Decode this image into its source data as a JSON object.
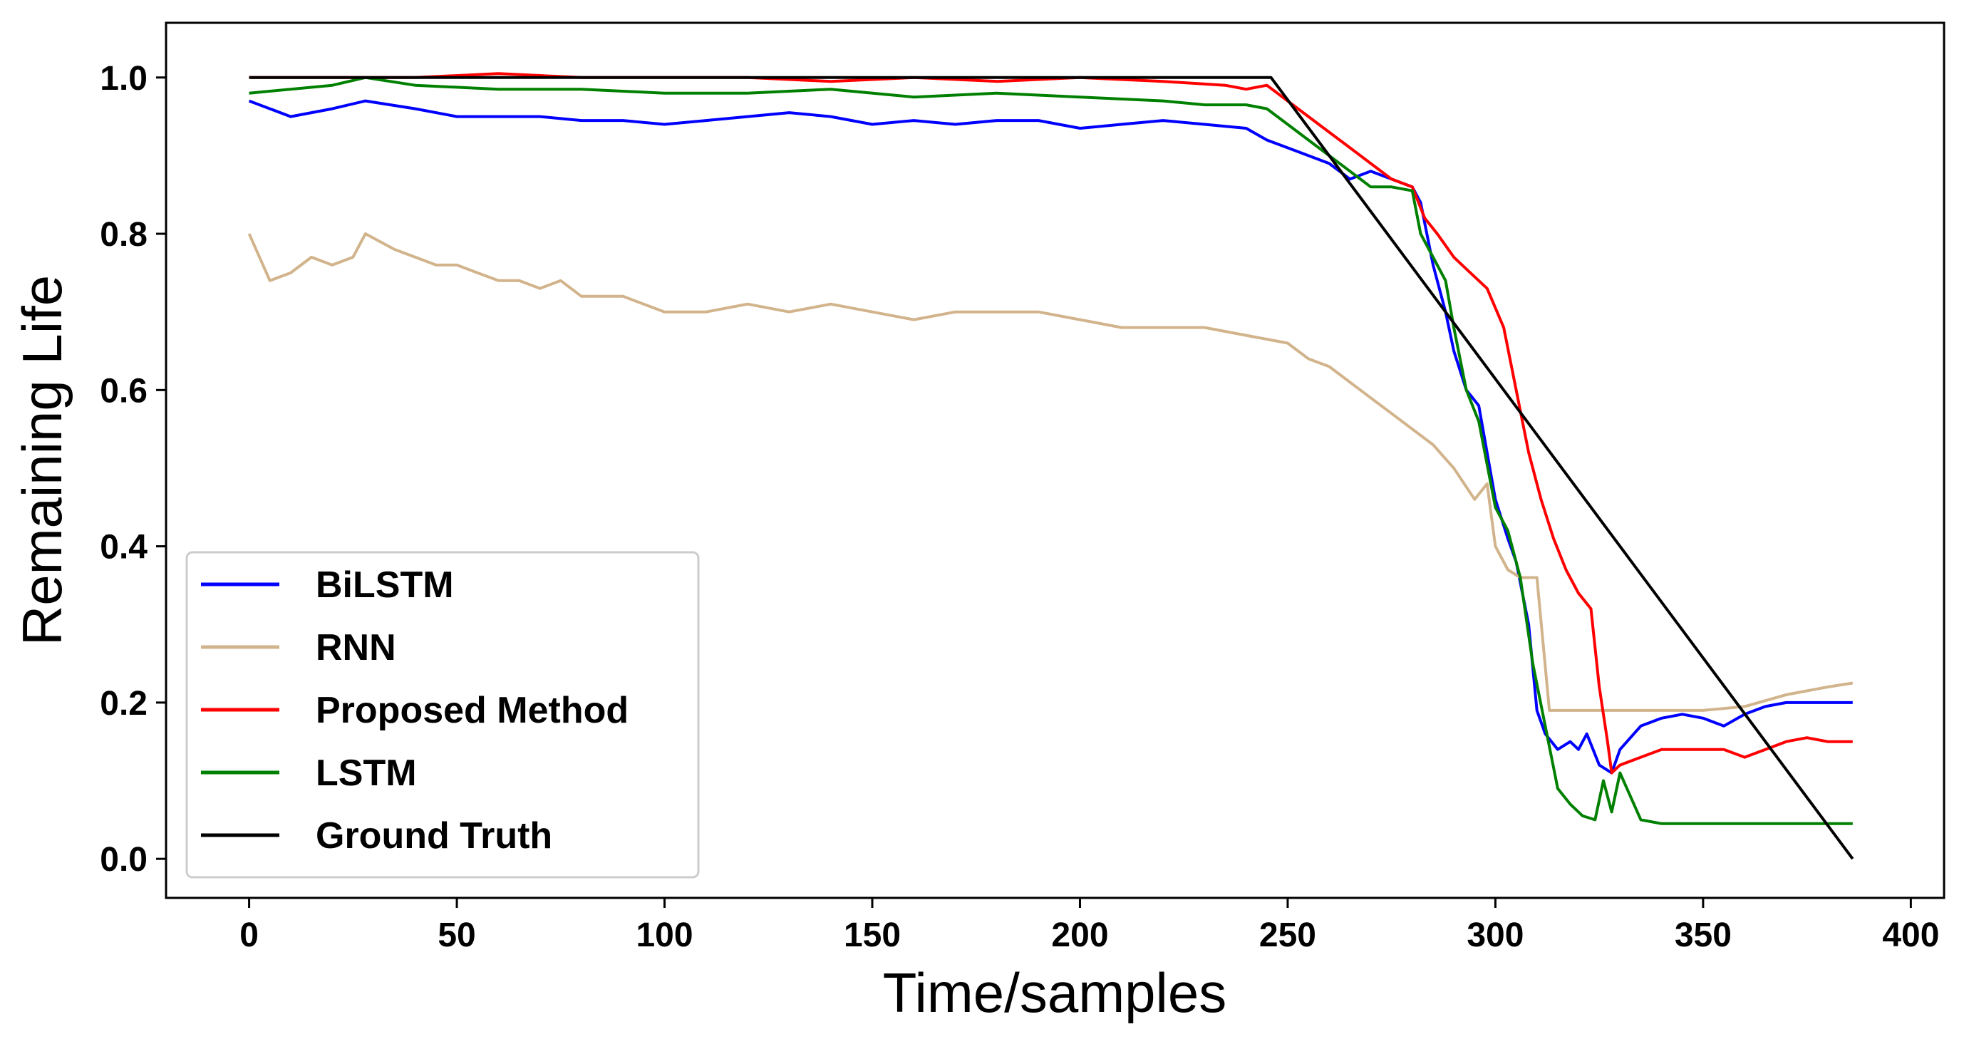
{
  "chart_data": {
    "type": "line",
    "title": "",
    "xlabel": "Time/samples",
    "ylabel": "Remaining Life",
    "xlim": [
      -20,
      408
    ],
    "ylim": [
      -0.05,
      1.07
    ],
    "xticks": [
      0,
      50,
      100,
      150,
      200,
      250,
      300,
      350,
      400
    ],
    "xtick_labels": [
      "0",
      "50",
      "100",
      "150",
      "200",
      "250",
      "300",
      "350",
      "400"
    ],
    "yticks": [
      0.0,
      0.2,
      0.4,
      0.6,
      0.8,
      1.0
    ],
    "ytick_labels": [
      "0.0",
      "0.2",
      "0.4",
      "0.6",
      "0.8",
      "1.0"
    ],
    "grid": false,
    "legend_position": "lower-left",
    "series": [
      {
        "name": "BiLSTM",
        "color": "#0000ff",
        "x": [
          0,
          10,
          20,
          28,
          40,
          50,
          60,
          70,
          80,
          90,
          100,
          110,
          120,
          130,
          140,
          150,
          160,
          170,
          180,
          190,
          200,
          210,
          220,
          230,
          240,
          245,
          250,
          255,
          260,
          265,
          270,
          275,
          280,
          282,
          285,
          288,
          290,
          293,
          296,
          300,
          303,
          305,
          308,
          310,
          312,
          315,
          318,
          320,
          322,
          325,
          328,
          330,
          335,
          340,
          345,
          350,
          355,
          360,
          365,
          370,
          375,
          380,
          386
        ],
        "y": [
          0.97,
          0.95,
          0.96,
          0.97,
          0.96,
          0.95,
          0.95,
          0.95,
          0.945,
          0.945,
          0.94,
          0.945,
          0.95,
          0.955,
          0.95,
          0.94,
          0.945,
          0.94,
          0.945,
          0.945,
          0.935,
          0.94,
          0.945,
          0.94,
          0.935,
          0.92,
          0.91,
          0.9,
          0.89,
          0.87,
          0.88,
          0.87,
          0.86,
          0.84,
          0.76,
          0.7,
          0.65,
          0.6,
          0.58,
          0.46,
          0.41,
          0.38,
          0.3,
          0.19,
          0.16,
          0.14,
          0.15,
          0.14,
          0.16,
          0.12,
          0.11,
          0.14,
          0.17,
          0.18,
          0.185,
          0.18,
          0.17,
          0.185,
          0.195,
          0.2,
          0.2,
          0.2,
          0.2
        ]
      },
      {
        "name": "RNN",
        "color": "#d2b48c",
        "x": [
          0,
          5,
          10,
          15,
          20,
          25,
          28,
          35,
          40,
          45,
          50,
          55,
          60,
          65,
          70,
          75,
          80,
          90,
          100,
          110,
          120,
          130,
          140,
          150,
          160,
          170,
          180,
          190,
          200,
          210,
          220,
          230,
          240,
          250,
          255,
          260,
          265,
          270,
          275,
          280,
          285,
          290,
          295,
          298,
          300,
          303,
          306,
          310,
          313,
          320,
          330,
          340,
          350,
          360,
          370,
          380,
          386
        ],
        "y": [
          0.8,
          0.74,
          0.75,
          0.77,
          0.76,
          0.77,
          0.8,
          0.78,
          0.77,
          0.76,
          0.76,
          0.75,
          0.74,
          0.74,
          0.73,
          0.74,
          0.72,
          0.72,
          0.7,
          0.7,
          0.71,
          0.7,
          0.71,
          0.7,
          0.69,
          0.7,
          0.7,
          0.7,
          0.69,
          0.68,
          0.68,
          0.68,
          0.67,
          0.66,
          0.64,
          0.63,
          0.61,
          0.59,
          0.57,
          0.55,
          0.53,
          0.5,
          0.46,
          0.48,
          0.4,
          0.37,
          0.36,
          0.36,
          0.19,
          0.19,
          0.19,
          0.19,
          0.19,
          0.195,
          0.21,
          0.22,
          0.225
        ]
      },
      {
        "name": "Proposed Method",
        "color": "#ff0000",
        "x": [
          0,
          20,
          40,
          60,
          80,
          100,
          120,
          140,
          160,
          180,
          200,
          220,
          235,
          240,
          245,
          250,
          255,
          260,
          265,
          270,
          275,
          280,
          283,
          286,
          290,
          294,
          298,
          302,
          305,
          308,
          311,
          314,
          317,
          320,
          323,
          325,
          327,
          328,
          330,
          335,
          340,
          345,
          350,
          355,
          360,
          365,
          370,
          375,
          380,
          386
        ],
        "y": [
          1.0,
          1.0,
          1.0,
          1.005,
          1.0,
          1.0,
          1.0,
          0.995,
          1.0,
          0.995,
          1.0,
          0.995,
          0.99,
          0.985,
          0.99,
          0.97,
          0.95,
          0.93,
          0.91,
          0.89,
          0.87,
          0.86,
          0.82,
          0.8,
          0.77,
          0.75,
          0.73,
          0.68,
          0.6,
          0.52,
          0.46,
          0.41,
          0.37,
          0.34,
          0.32,
          0.22,
          0.15,
          0.11,
          0.12,
          0.13,
          0.14,
          0.14,
          0.14,
          0.14,
          0.13,
          0.14,
          0.15,
          0.155,
          0.15,
          0.15
        ]
      },
      {
        "name": "LSTM",
        "color": "#008000",
        "x": [
          0,
          20,
          28,
          40,
          60,
          80,
          100,
          120,
          140,
          160,
          180,
          200,
          220,
          230,
          240,
          245,
          250,
          255,
          260,
          265,
          270,
          275,
          280,
          282,
          285,
          288,
          290,
          293,
          296,
          300,
          303,
          306,
          309,
          312,
          315,
          318,
          321,
          324,
          326,
          328,
          330,
          335,
          340,
          350,
          360,
          370,
          380,
          386
        ],
        "y": [
          0.98,
          0.99,
          1.0,
          0.99,
          0.985,
          0.985,
          0.98,
          0.98,
          0.985,
          0.975,
          0.98,
          0.975,
          0.97,
          0.965,
          0.965,
          0.96,
          0.94,
          0.92,
          0.9,
          0.88,
          0.86,
          0.86,
          0.855,
          0.8,
          0.77,
          0.74,
          0.68,
          0.6,
          0.56,
          0.45,
          0.42,
          0.36,
          0.25,
          0.17,
          0.09,
          0.07,
          0.055,
          0.05,
          0.1,
          0.06,
          0.11,
          0.05,
          0.045,
          0.045,
          0.045,
          0.045,
          0.045,
          0.045
        ]
      },
      {
        "name": "Ground Truth",
        "color": "#000000",
        "x": [
          0,
          246,
          386
        ],
        "y": [
          1.0,
          1.0,
          0.0
        ]
      }
    ]
  }
}
